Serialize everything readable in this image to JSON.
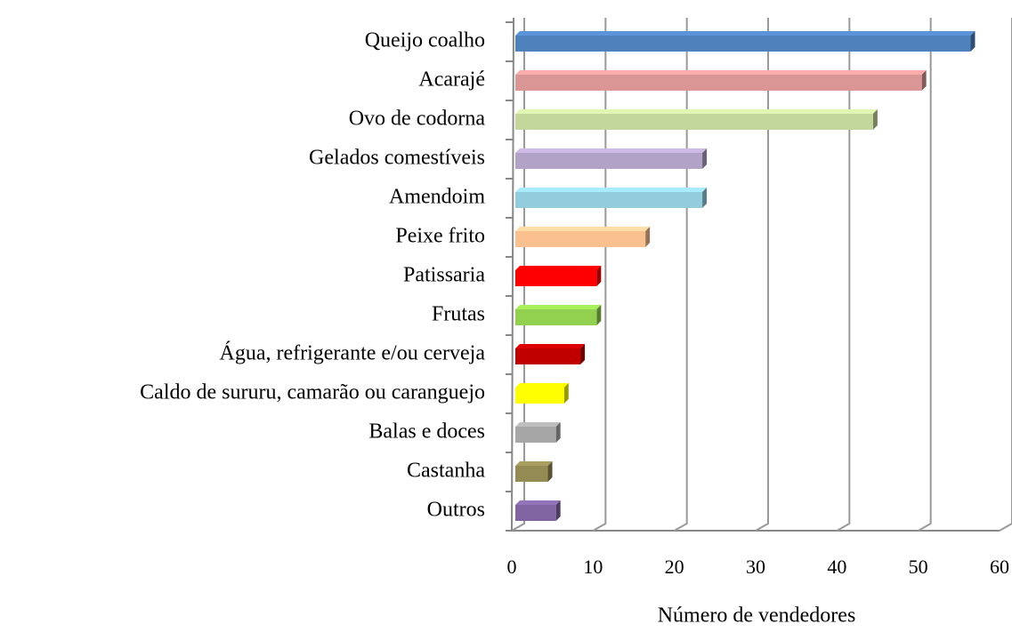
{
  "chart_data": {
    "type": "hbar3d",
    "categories": [
      "Queijo coalho",
      "Acarajé",
      "Ovo de codorna",
      "Gelados comestíveis",
      "Amendoim",
      "Peixe frito",
      "Patissaria",
      "Frutas",
      "Água, refrigerante e/ou cerveja",
      "Caldo de sururu, camarão ou caranguejo",
      "Balas e doces",
      "Castanha",
      "Outros"
    ],
    "values": [
      56,
      50,
      44,
      23,
      23,
      16,
      10,
      10,
      8,
      6,
      5,
      4,
      5
    ],
    "colors": [
      "#4f81bd",
      "#d99694",
      "#c3d69b",
      "#b2a2c7",
      "#93cddd",
      "#fac090",
      "#ff0000",
      "#92d050",
      "#c00000",
      "#ffff00",
      "#a6a6a6",
      "#948a54",
      "#8064a2"
    ],
    "x_label": "Número de vendedores",
    "xlim": [
      0,
      60
    ],
    "xticks": [
      0,
      10,
      20,
      30,
      40,
      50,
      60
    ],
    "grid": true
  }
}
